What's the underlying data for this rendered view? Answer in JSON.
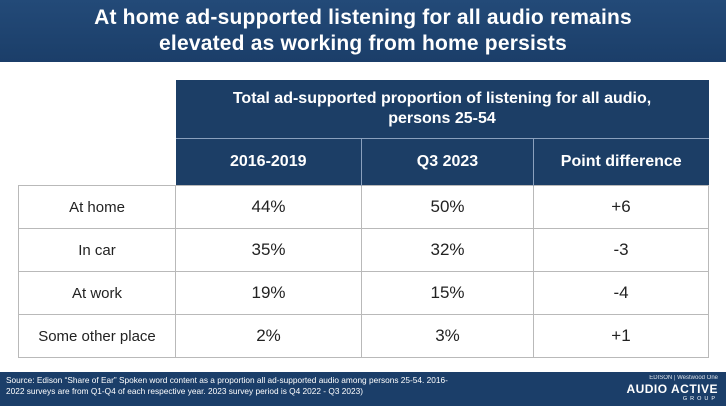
{
  "header": {
    "title_line1": "At home ad-supported listening for all audio remains",
    "title_line2": "elevated as working from home persists"
  },
  "table": {
    "title_line1": "Total ad-supported proportion of listening for all audio,",
    "title_line2": "persons 25-54",
    "columns": [
      "2016-2019",
      "Q3 2023",
      "Point difference"
    ],
    "rows": [
      {
        "label": "At home",
        "values": [
          "44%",
          "50%",
          "+6"
        ]
      },
      {
        "label": "In car",
        "values": [
          "35%",
          "32%",
          "-3"
        ]
      },
      {
        "label": "At work",
        "values": [
          "19%",
          "15%",
          "-4"
        ]
      },
      {
        "label": "Some other place",
        "values": [
          "2%",
          "3%",
          "+1"
        ]
      }
    ]
  },
  "footer": {
    "source_line1": "Source: Edison “Share of Ear” Spoken word content as a proportion all ad-supported audio among persons 25-54. 2016-",
    "source_line2": "2022 surveys are from Q1-Q4 of each respective year. 2023 survey period is Q4 2022 - Q3 2023)",
    "logo_partners": "EDISON | Westwood One",
    "logo_brand": "AUDIO ACTIVE",
    "logo_sub": "GROUP"
  },
  "colors": {
    "banner": "#1b3e69",
    "table_header": "#1c3e66",
    "text_on_dark": "#ffffff"
  }
}
